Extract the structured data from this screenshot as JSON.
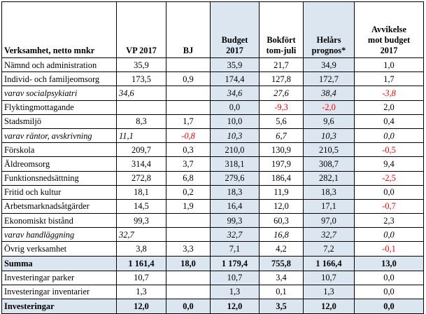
{
  "table": {
    "headers": [
      {
        "line1": "Verksamhet, netto mnkr",
        "line2": ""
      },
      {
        "line1": "VP 2017",
        "line2": ""
      },
      {
        "line1": "BJ",
        "line2": ""
      },
      {
        "line1": "Budget",
        "line2": "2017"
      },
      {
        "line1": "Bokfört",
        "line2": "tom-juli"
      },
      {
        "line1": "Helårs",
        "line2": "prognos*"
      },
      {
        "line1": "Avvikelse",
        "line2": "mot budget",
        "line3": "2017"
      }
    ],
    "rows": [
      {
        "label": "Nämnd och administration",
        "vp": "35,9",
        "bj": "",
        "budget": "35,9",
        "bokfort": "21,7",
        "prognos": "34,9",
        "avvikelse": "1,0"
      },
      {
        "label": "Individ- och familjeomsorg",
        "vp": "173,5",
        "bj": "0,9",
        "budget": "174,4",
        "bokfort": "127,8",
        "prognos": "172,7",
        "avvikelse": "1,7"
      },
      {
        "label": "varav socialpsykiatri",
        "vp": "34,6",
        "bj": "",
        "budget": "34,6",
        "bokfort": "27,6",
        "prognos": "38,4",
        "avvikelse": "-3,8"
      },
      {
        "label": "Flyktingmottagande",
        "vp": "",
        "bj": "",
        "budget": "0,0",
        "bokfort": "-9,3",
        "prognos": "-2,0",
        "avvikelse": "2,0"
      },
      {
        "label": "Stadsmiljö",
        "vp": "8,3",
        "bj": "1,7",
        "budget": "10,0",
        "bokfort": "5,6",
        "prognos": "9,6",
        "avvikelse": "0,4"
      },
      {
        "label": "varav räntor, avskrivning",
        "vp": "11,1",
        "bj": "-0,8",
        "budget": "10,3",
        "bokfort": "6,7",
        "prognos": "10,3",
        "avvikelse": "0,0"
      },
      {
        "label": "Förskola",
        "vp": "209,7",
        "bj": "0,3",
        "budget": "210,0",
        "bokfort": "130,9",
        "prognos": "210,5",
        "avvikelse": "-0,5"
      },
      {
        "label": "Äldreomsorg",
        "vp": "314,4",
        "bj": "3,7",
        "budget": "318,1",
        "bokfort": "197,9",
        "prognos": "308,7",
        "avvikelse": "9,4"
      },
      {
        "label": "Funktionsnedsättning",
        "vp": "272,8",
        "bj": "6,8",
        "budget": "279,6",
        "bokfort": "186,4",
        "prognos": "282,1",
        "avvikelse": "-2,5"
      },
      {
        "label": "Fritid och kultur",
        "vp": "18,1",
        "bj": "0,2",
        "budget": "18,3",
        "bokfort": "11,9",
        "prognos": "18,3",
        "avvikelse": "0,0"
      },
      {
        "label": "Arbetsmarknadsåtgärder",
        "vp": "14,5",
        "bj": "1,9",
        "budget": "16,4",
        "bokfort": "12,0",
        "prognos": "17,1",
        "avvikelse": "-0,7"
      },
      {
        "label": "Ekonomiskt bistånd",
        "vp": "99,3",
        "bj": "",
        "budget": "99,3",
        "bokfort": "60,3",
        "prognos": "97,0",
        "avvikelse": "2,3"
      },
      {
        "label": "varav handläggning",
        "vp": "32,7",
        "bj": "",
        "budget": "32,7",
        "bokfort": "16,8",
        "prognos": "32,7",
        "avvikelse": "0,0"
      },
      {
        "label": "Övrig verksamhet",
        "vp": "3,8",
        "bj": "3,3",
        "budget": "7,1",
        "bokfort": "4,2",
        "prognos": "7,2",
        "avvikelse": "-0,1"
      },
      {
        "label": "Summa",
        "vp": "1 161,4",
        "bj": "18,0",
        "budget": "1 179,4",
        "bokfort": "755,8",
        "prognos": "1 166,4",
        "avvikelse": "13,0"
      },
      {
        "label": "Investeringar parker",
        "vp": "10,7",
        "bj": "",
        "budget": "10,7",
        "bokfort": "3,4",
        "prognos": "10,7",
        "avvikelse": "0,0"
      },
      {
        "label": "Investeringar inventarier",
        "vp": "1,3",
        "bj": "",
        "budget": "1,3",
        "bokfort": "0,1",
        "prognos": "1,3",
        "avvikelse": "0,0"
      },
      {
        "label": "Investeringar",
        "vp": "12,0",
        "bj": "0,0",
        "budget": "12,0",
        "bokfort": "3,5",
        "prognos": "12,0",
        "avvikelse": "0,0"
      }
    ]
  },
  "colors": {
    "header_shade": "#dce6f1",
    "negative": "#ff0000",
    "border": "#000000"
  }
}
